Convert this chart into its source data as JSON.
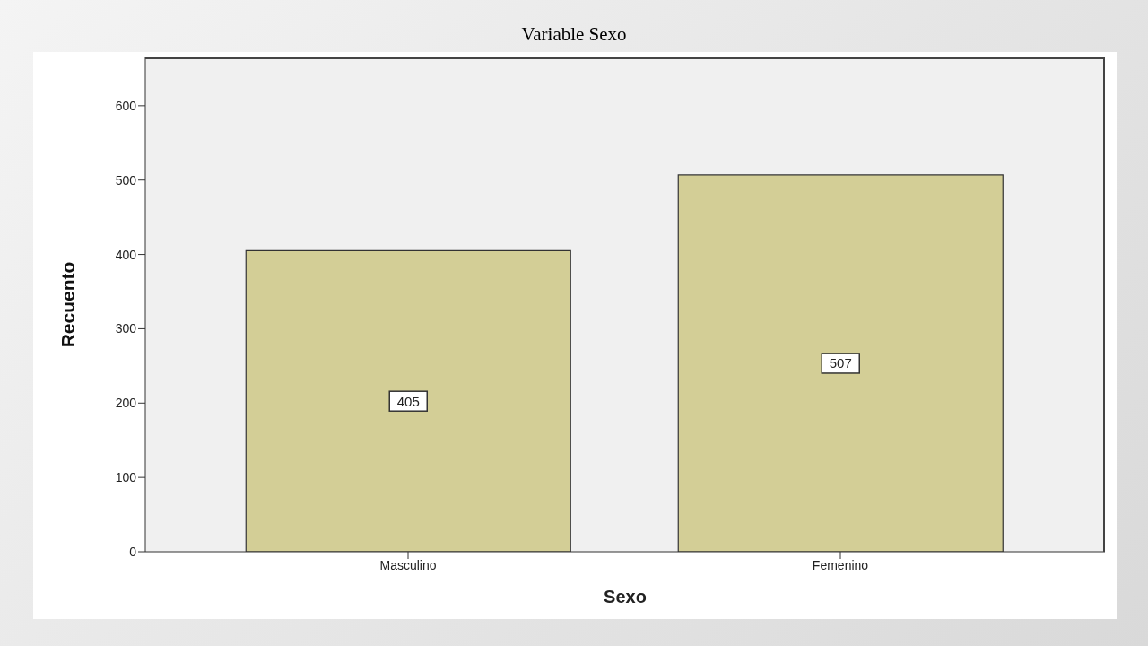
{
  "chart_data": {
    "type": "bar",
    "title": "Variable Sexo",
    "xlabel": "Sexo",
    "ylabel": "Recuento",
    "categories": [
      "Masculino",
      "Femenino"
    ],
    "values": [
      405,
      507
    ],
    "color": "#d3ce96",
    "ylim": [
      0,
      665
    ],
    "yticks": [
      0,
      100,
      200,
      300,
      400,
      500,
      600
    ],
    "data_labels": true
  }
}
